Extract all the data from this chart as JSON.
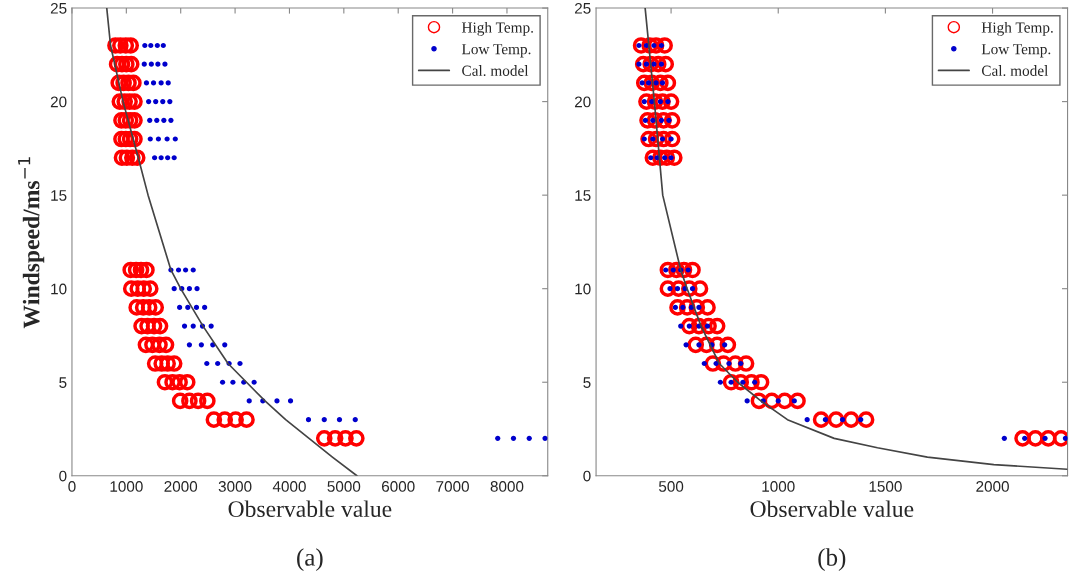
{
  "chart_data": [
    {
      "type": "scatter",
      "ylabel": "Windspeed/ms$^{−1}$",
      "xlabel": "Observable value",
      "annotations": [
        "(a)"
      ],
      "legend": "top right",
      "xlim": [
        0,
        8750
      ],
      "xticks": [
        0,
        1000,
        2000,
        3000,
        4000,
        5000,
        6000,
        7000,
        8000
      ],
      "ylim": [
        0,
        25
      ],
      "yticks": [
        0,
        5,
        10,
        15,
        20,
        25
      ],
      "series": [
        {
          "name": "High Temp.",
          "marker": "circle",
          "color": "#ff0000",
          "x": [
            800,
            890,
            990,
            1080,
            830,
            920,
            1000,
            1090,
            860,
            950,
            1040,
            1130,
            880,
            970,
            1060,
            1150,
            910,
            990,
            1070,
            1150,
            910,
            990,
            1070,
            1150,
            920,
            1010,
            1110,
            1200,
            1080,
            1180,
            1270,
            1370,
            1090,
            1210,
            1320,
            1440,
            1190,
            1310,
            1420,
            1540,
            1280,
            1390,
            1510,
            1620,
            1360,
            1480,
            1610,
            1730,
            1530,
            1650,
            1760,
            1880,
            1710,
            1850,
            1980,
            2120,
            1990,
            2160,
            2320,
            2490,
            2610,
            2810,
            3010,
            3210,
            4640,
            4840,
            5030,
            5230
          ],
          "values": [
            23,
            23,
            23,
            23,
            22,
            22,
            22,
            22,
            21,
            21,
            21,
            21,
            20,
            20,
            20,
            20,
            19,
            19,
            19,
            19,
            18,
            18,
            18,
            18,
            17,
            17,
            17,
            17,
            11,
            11,
            11,
            11,
            10,
            10,
            10,
            10,
            9,
            9,
            9,
            9,
            8,
            8,
            8,
            8,
            7,
            7,
            7,
            7,
            6,
            6,
            6,
            6,
            5,
            5,
            5,
            5,
            4,
            4,
            4,
            4,
            3,
            3,
            3,
            3,
            2,
            2,
            2,
            2
          ]
        },
        {
          "name": "Low Temp.",
          "marker": "circle",
          "color": "#0000cc",
          "x": [
            1340,
            1450,
            1570,
            1680,
            1330,
            1460,
            1580,
            1710,
            1370,
            1500,
            1640,
            1770,
            1410,
            1540,
            1670,
            1800,
            1430,
            1560,
            1690,
            1820,
            1440,
            1590,
            1750,
            1900,
            1520,
            1640,
            1760,
            1880,
            1820,
            1960,
            2090,
            2230,
            1880,
            2020,
            2160,
            2300,
            1980,
            2130,
            2290,
            2440,
            2070,
            2230,
            2400,
            2560,
            2160,
            2380,
            2590,
            2810,
            2480,
            2680,
            2890,
            3090,
            2770,
            2960,
            3160,
            3350,
            3260,
            3510,
            3770,
            4020,
            4350,
            4640,
            4920,
            5210,
            7830,
            8120,
            8410,
            8700
          ],
          "values": [
            23,
            23,
            23,
            23,
            22,
            22,
            22,
            22,
            21,
            21,
            21,
            21,
            20,
            20,
            20,
            20,
            19,
            19,
            19,
            19,
            18,
            18,
            18,
            18,
            17,
            17,
            17,
            17,
            11,
            11,
            11,
            11,
            10,
            10,
            10,
            10,
            9,
            9,
            9,
            9,
            8,
            8,
            8,
            8,
            7,
            7,
            7,
            7,
            6,
            6,
            6,
            6,
            5,
            5,
            5,
            5,
            4,
            4,
            4,
            4,
            3,
            3,
            3,
            3,
            2,
            2,
            2,
            2
          ]
        },
        {
          "name": "Cal. model",
          "type": "line",
          "marker": "none",
          "color": "#444444",
          "x": [
            640,
            710,
            940,
            1220,
            1400,
            1820,
            2000,
            2410,
            2870,
            3550,
            3930,
            4360,
            4790,
            5240
          ],
          "values": [
            25,
            23,
            20,
            17,
            15,
            11,
            10,
            8,
            6,
            4,
            3,
            2,
            1,
            0
          ]
        }
      ]
    },
    {
      "type": "scatter",
      "xlabel": "Observable value",
      "annotations": [
        "(b)"
      ],
      "legend": "top right",
      "xlim": [
        150,
        2350
      ],
      "xticks": [
        500,
        1000,
        1500,
        2000
      ],
      "ylim": [
        0,
        25
      ],
      "yticks": [
        0,
        5,
        10,
        15,
        20,
        25
      ],
      "series": [
        {
          "name": "High Temp.",
          "marker": "circle",
          "color": "#ff0000",
          "x": [
            360,
            400,
            430,
            470,
            370,
            405,
            440,
            475,
            375,
            410,
            450,
            485,
            385,
            425,
            460,
            500,
            390,
            425,
            465,
            505,
            395,
            430,
            465,
            505,
            415,
            450,
            480,
            515,
            485,
            525,
            560,
            600,
            485,
            535,
            585,
            635,
            530,
            575,
            620,
            670,
            585,
            630,
            675,
            715,
            615,
            665,
            715,
            765,
            695,
            745,
            800,
            850,
            780,
            825,
            875,
            920,
            910,
            970,
            1030,
            1090,
            1200,
            1270,
            1340,
            1410,
            2140,
            2200,
            2260,
            2320
          ],
          "values": [
            23,
            23,
            23,
            23,
            22,
            22,
            22,
            22,
            21,
            21,
            21,
            21,
            20,
            20,
            20,
            20,
            19,
            19,
            19,
            19,
            18,
            18,
            18,
            18,
            17,
            17,
            17,
            17,
            11,
            11,
            11,
            11,
            10,
            10,
            10,
            10,
            9,
            9,
            9,
            9,
            8,
            8,
            8,
            8,
            7,
            7,
            7,
            7,
            6,
            6,
            6,
            6,
            5,
            5,
            5,
            5,
            4,
            4,
            4,
            4,
            3,
            3,
            3,
            3,
            2,
            2,
            2,
            2
          ]
        },
        {
          "name": "Low Temp.",
          "marker": "circle",
          "color": "#0000cc",
          "x": [
            350,
            385,
            420,
            455,
            350,
            385,
            420,
            455,
            365,
            395,
            430,
            460,
            375,
            410,
            450,
            485,
            380,
            415,
            455,
            490,
            375,
            415,
            460,
            500,
            405,
            435,
            470,
            500,
            475,
            510,
            545,
            580,
            495,
            530,
            565,
            600,
            520,
            555,
            595,
            630,
            545,
            585,
            630,
            670,
            570,
            630,
            690,
            750,
            655,
            710,
            770,
            825,
            730,
            780,
            835,
            890,
            855,
            930,
            1000,
            1075,
            1135,
            1220,
            1300,
            1385,
            2055,
            2150,
            2245,
            2340
          ],
          "values": [
            23,
            23,
            23,
            23,
            22,
            22,
            22,
            22,
            21,
            21,
            21,
            21,
            20,
            20,
            20,
            20,
            19,
            19,
            19,
            19,
            18,
            18,
            18,
            18,
            17,
            17,
            17,
            17,
            11,
            11,
            11,
            11,
            10,
            10,
            10,
            10,
            9,
            9,
            9,
            9,
            8,
            8,
            8,
            8,
            7,
            7,
            7,
            7,
            6,
            6,
            6,
            6,
            5,
            5,
            5,
            5,
            4,
            4,
            4,
            4,
            3,
            3,
            3,
            3,
            2,
            2,
            2,
            2
          ]
        },
        {
          "name": "Cal. model",
          "type": "line",
          "marker": "none",
          "color": "#444444",
          "x": [
            379,
            422,
            461,
            545,
            575,
            640,
            725,
            811,
            919,
            1043,
            1261,
            1463,
            1696,
            2006,
            2348
          ],
          "values": [
            25,
            20,
            15,
            11,
            10,
            8,
            6,
            5,
            4,
            3,
            2,
            1.5,
            1,
            0.6,
            0.35
          ]
        }
      ]
    }
  ]
}
